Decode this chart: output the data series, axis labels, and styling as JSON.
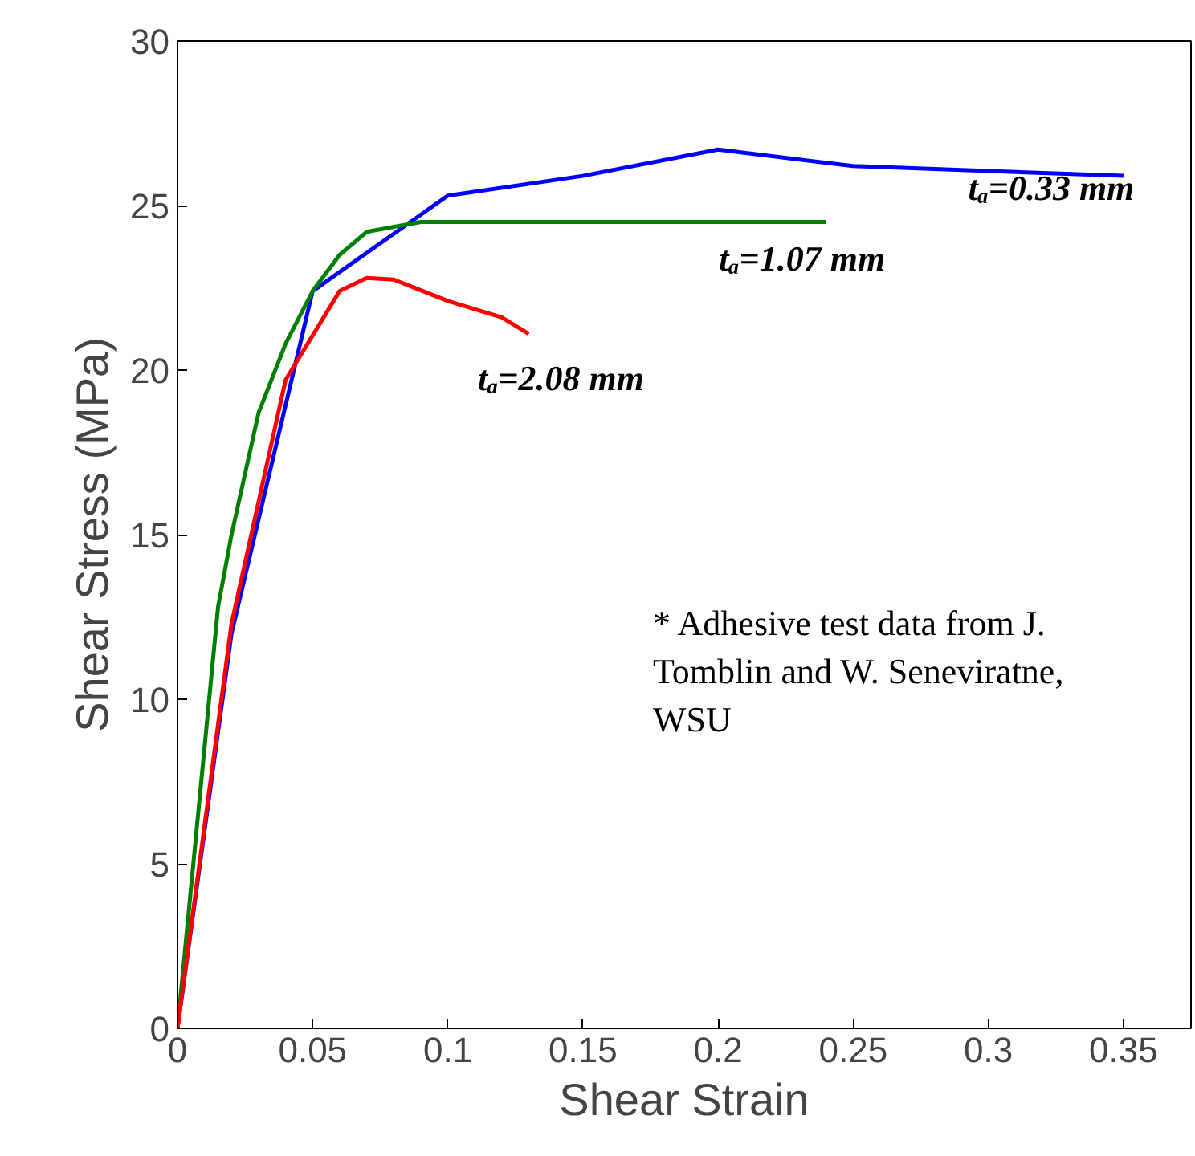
{
  "chart_data": {
    "type": "line",
    "xlabel": "Shear Strain",
    "ylabel": "Shear Stress (MPa)",
    "xlim": [
      0,
      0.375
    ],
    "ylim": [
      0,
      30
    ],
    "xticks": [
      0,
      0.05,
      0.1,
      0.15,
      0.2,
      0.25,
      0.3,
      0.35
    ],
    "yticks": [
      0,
      5,
      10,
      15,
      20,
      25,
      30
    ],
    "grid": false,
    "legend": false,
    "marker": "none",
    "line_style": "solid",
    "series": [
      {
        "name": "tₐ=0.33 mm",
        "color": "#0000ff",
        "x": [
          0,
          0.02,
          0.05,
          0.1,
          0.15,
          0.2,
          0.25,
          0.35
        ],
        "values": [
          0,
          12,
          22.4,
          25.3,
          25.9,
          26.7,
          26.2,
          25.9
        ]
      },
      {
        "name": "tₐ=1.07 mm",
        "color": "#007f00",
        "x": [
          0,
          0.015,
          0.02,
          0.03,
          0.04,
          0.05,
          0.06,
          0.07,
          0.09,
          0.24
        ],
        "values": [
          0,
          12.8,
          15,
          18.7,
          20.8,
          22.4,
          23.5,
          24.2,
          24.5,
          24.5
        ]
      },
      {
        "name": "tₐ=2.08 mm",
        "color": "#ff0000",
        "x": [
          0,
          0.02,
          0.04,
          0.06,
          0.07,
          0.08,
          0.1,
          0.12,
          0.13
        ],
        "values": [
          0,
          12.3,
          19.7,
          22.4,
          22.8,
          22.75,
          22.1,
          21.6,
          21.1
        ]
      }
    ],
    "annotations": [
      "* Adhesive test data from J.\n  Tomblin and W. Seneviratne,\n  WSU"
    ]
  }
}
